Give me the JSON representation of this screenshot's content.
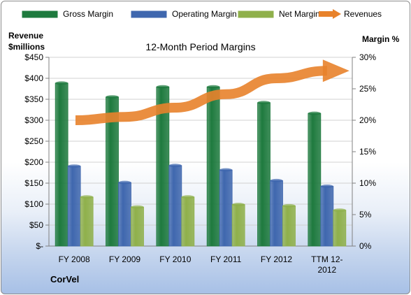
{
  "chart_data": {
    "type": "bar",
    "title": "12-Month Period Margins",
    "categories": [
      "FY 2008",
      "FY 2009",
      "FY 2010",
      "FY 2011",
      "FY 2012",
      "TTM 12-2012"
    ],
    "series": [
      {
        "name": "Gross Margin",
        "axis": "right",
        "values": [
          25.9,
          23.7,
          25.3,
          25.3,
          22.8,
          21.1
        ],
        "color": "#1e7a3e"
      },
      {
        "name": "Operating Margin",
        "axis": "right",
        "values": [
          12.7,
          10.1,
          12.8,
          12.1,
          10.4,
          9.5
        ],
        "color": "#3f67ae"
      },
      {
        "name": "Net Margin",
        "axis": "right",
        "values": [
          7.8,
          6.2,
          7.8,
          6.6,
          6.4,
          5.7
        ],
        "color": "#8fb04b"
      },
      {
        "name": "Revenues",
        "axis": "left",
        "type": "line",
        "values": [
          300,
          308,
          330,
          362,
          400,
          418
        ],
        "color": "#e8822b"
      }
    ],
    "left_axis": {
      "label_line1": "Revenue",
      "label_line2": "$millions",
      "ticks": [
        "$-",
        "$50",
        "$100",
        "$150",
        "$200",
        "$250",
        "$300",
        "$350",
        "$400",
        "$450"
      ],
      "min": 0,
      "max": 450
    },
    "right_axis": {
      "label": "Margin %",
      "ticks": [
        "0%",
        "5%",
        "10%",
        "15%",
        "20%",
        "25%",
        "30%"
      ],
      "min": 0,
      "max": 30
    },
    "category_labels": [
      [
        "FY 2008"
      ],
      [
        "FY 2009"
      ],
      [
        "FY 2010"
      ],
      [
        "FY 2011"
      ],
      [
        "FY 2012"
      ],
      [
        "TTM 12-",
        "2012"
      ]
    ],
    "legend_position": "top",
    "grid": true
  },
  "footer": {
    "company": "CorVel"
  }
}
